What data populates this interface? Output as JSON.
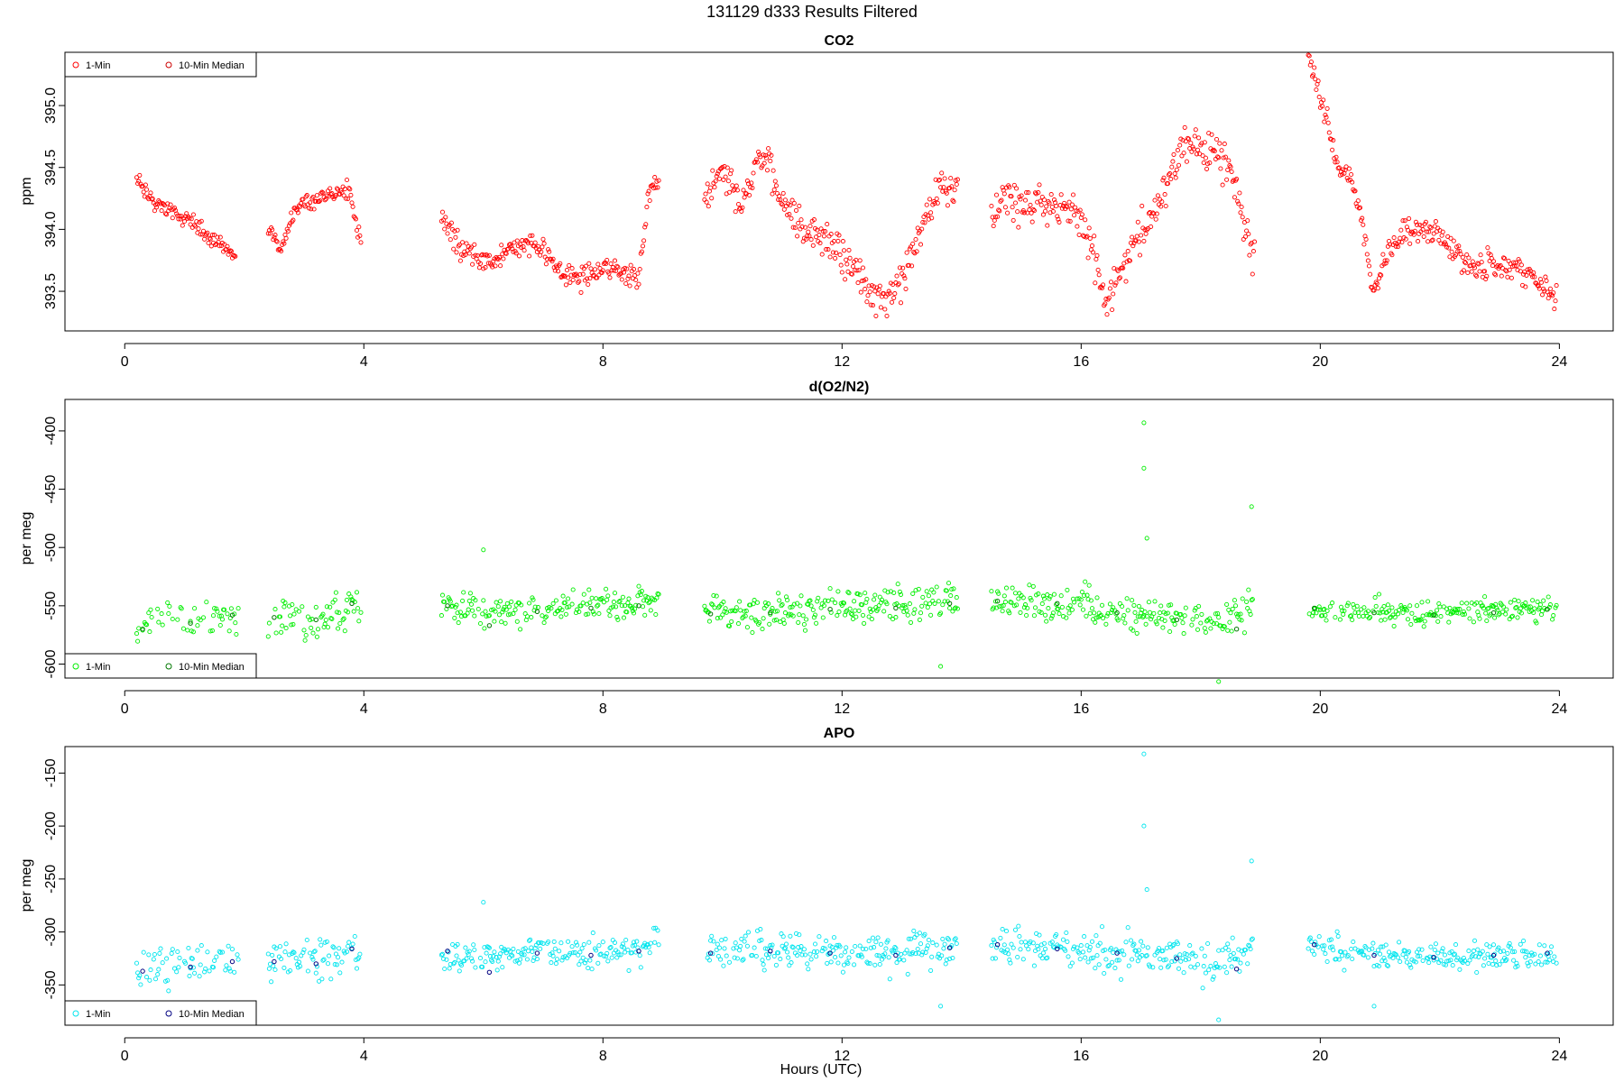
{
  "figure": {
    "title": "131129   d333   Results Filtered",
    "xlabel": "Hours (UTC)"
  },
  "legend_labels": [
    "1-Min",
    "10-Min Median"
  ],
  "chart_data": [
    {
      "type": "scatter",
      "title": "CO2",
      "ylabel": "ppm",
      "xlim": [
        -1,
        24.9
      ],
      "ylim": [
        393.18,
        395.43
      ],
      "xticks": [
        0,
        4,
        8,
        12,
        16,
        20,
        24
      ],
      "yticks": [
        393.5,
        394.0,
        394.5,
        395.0
      ],
      "ytick_labels": [
        "393.5",
        "394.0",
        "394.5",
        "395.0"
      ],
      "legend_position": "top-left",
      "colors": {
        "one_min": "#ff0000",
        "median": "#cc0000"
      },
      "series": [
        {
          "name": "1-Min",
          "segments": [
            {
              "points": [
                [
                  0.2,
                  394.4
                ],
                [
                  0.5,
                  394.22
                ],
                [
                  1.0,
                  394.1
                ],
                [
                  1.4,
                  393.95
                ],
                [
                  1.85,
                  393.78
                ]
              ],
              "noise": 0.05,
              "density": 1.0
            },
            {
              "points": [
                [
                  2.4,
                  394.0
                ],
                [
                  2.6,
                  393.85
                ],
                [
                  2.9,
                  394.2
                ],
                [
                  3.3,
                  394.25
                ],
                [
                  3.6,
                  394.3
                ],
                [
                  3.75,
                  394.3
                ],
                [
                  3.95,
                  393.92
                ]
              ],
              "noise": 0.05,
              "density": 1.0
            },
            {
              "points": [
                [
                  5.3,
                  394.1
                ],
                [
                  5.6,
                  393.85
                ],
                [
                  6.0,
                  393.75
                ],
                [
                  6.4,
                  393.8
                ],
                [
                  6.7,
                  393.9
                ],
                [
                  7.0,
                  393.85
                ],
                [
                  7.3,
                  393.65
                ],
                [
                  7.6,
                  393.6
                ],
                [
                  8.0,
                  393.7
                ],
                [
                  8.3,
                  393.65
                ],
                [
                  8.6,
                  393.62
                ],
                [
                  8.75,
                  394.2
                ],
                [
                  8.95,
                  394.45
                ]
              ],
              "noise": 0.07,
              "density": 1.0
            },
            {
              "points": [
                [
                  9.7,
                  394.2
                ],
                [
                  10.0,
                  394.5
                ],
                [
                  10.3,
                  394.2
                ],
                [
                  10.6,
                  394.6
                ],
                [
                  10.8,
                  394.5
                ],
                [
                  11.0,
                  394.2
                ],
                [
                  11.5,
                  394.0
                ],
                [
                  12.0,
                  393.8
                ],
                [
                  12.4,
                  393.55
                ],
                [
                  12.7,
                  393.4
                ],
                [
                  13.0,
                  393.55
                ],
                [
                  13.3,
                  393.95
                ],
                [
                  13.6,
                  394.3
                ],
                [
                  13.95,
                  394.3
                ]
              ],
              "noise": 0.12,
              "density": 1.0
            },
            {
              "points": [
                [
                  14.5,
                  394.1
                ],
                [
                  14.7,
                  394.3
                ],
                [
                  15.0,
                  394.2
                ],
                [
                  15.5,
                  394.2
                ],
                [
                  15.9,
                  394.15
                ],
                [
                  16.2,
                  393.85
                ],
                [
                  16.4,
                  393.4
                ],
                [
                  16.8,
                  393.8
                ],
                [
                  17.2,
                  394.1
                ],
                [
                  17.5,
                  394.5
                ],
                [
                  17.8,
                  394.7
                ],
                [
                  18.2,
                  394.6
                ],
                [
                  18.5,
                  394.5
                ],
                [
                  18.9,
                  393.7
                ]
              ],
              "noise": 0.12,
              "density": 1.0
            },
            {
              "points": [
                [
                  19.8,
                  395.35
                ],
                [
                  20.0,
                  395.1
                ],
                [
                  20.3,
                  394.5
                ],
                [
                  20.6,
                  394.3
                ],
                [
                  20.9,
                  393.5
                ],
                [
                  21.1,
                  393.8
                ],
                [
                  21.5,
                  394.0
                ],
                [
                  22.0,
                  393.95
                ],
                [
                  22.5,
                  393.7
                ],
                [
                  23.0,
                  393.7
                ],
                [
                  23.5,
                  393.65
                ],
                [
                  23.95,
                  393.45
                ]
              ],
              "noise": 0.08,
              "density": 1.0
            }
          ]
        },
        {
          "name": "10-Min Median",
          "segments": []
        }
      ]
    },
    {
      "type": "scatter",
      "title": "d(O2/N2)",
      "ylabel": "per meg",
      "xlim": [
        -1,
        24.9
      ],
      "ylim": [
        -612,
        -373
      ],
      "xticks": [
        0,
        4,
        8,
        12,
        16,
        20,
        24
      ],
      "yticks": [
        -400,
        -450,
        -500,
        -550,
        -600
      ],
      "ytick_labels": [
        "-400",
        "-450",
        "-500",
        "-550",
        "-600"
      ],
      "legend_position": "bottom-left",
      "colors": {
        "one_min": "#00ee00",
        "median": "#007700"
      },
      "series": [
        {
          "name": "1-Min",
          "segments": [
            {
              "points": [
                [
                  0.2,
                  -570
                ],
                [
                  1.0,
                  -562
                ],
                [
                  1.9,
                  -560
                ]
              ],
              "noise": 12,
              "density": 0.5
            },
            {
              "points": [
                [
                  2.4,
                  -560
                ],
                [
                  3.0,
                  -565
                ],
                [
                  3.6,
                  -555
                ],
                [
                  3.95,
                  -548
                ]
              ],
              "noise": 14,
              "density": 0.7
            },
            {
              "points": [
                [
                  5.3,
                  -550
                ],
                [
                  6.0,
                  -555
                ],
                [
                  7.0,
                  -552
                ],
                [
                  8.0,
                  -550
                ],
                [
                  8.95,
                  -548
                ]
              ],
              "noise": 10,
              "density": 0.8
            },
            {
              "points": [
                [
                  9.7,
                  -555
                ],
                [
                  11.0,
                  -555
                ],
                [
                  12.0,
                  -552
                ],
                [
                  13.0,
                  -550
                ],
                [
                  13.95,
                  -545
                ]
              ],
              "noise": 12,
              "density": 0.8
            },
            {
              "points": [
                [
                  14.5,
                  -545
                ],
                [
                  15.5,
                  -548
                ],
                [
                  16.5,
                  -555
                ],
                [
                  17.5,
                  -560
                ],
                [
                  18.3,
                  -565
                ],
                [
                  18.9,
                  -550
                ]
              ],
              "noise": 12,
              "density": 0.8
            },
            {
              "points": [
                [
                  19.8,
                  -552
                ],
                [
                  21.0,
                  -555
                ],
                [
                  22.0,
                  -557
                ],
                [
                  23.0,
                  -553
                ],
                [
                  23.95,
                  -552
                ]
              ],
              "noise": 8,
              "density": 0.8
            }
          ],
          "outliers": [
            [
              17.05,
              -393
            ],
            [
              17.05,
              -432
            ],
            [
              17.1,
              -492
            ],
            [
              18.85,
              -465
            ],
            [
              13.65,
              -602
            ],
            [
              18.3,
              -615
            ],
            [
              6.0,
              -502
            ]
          ]
        },
        {
          "name": "10-Min Median",
          "points": [
            [
              0.3,
              -570
            ],
            [
              1.1,
              -565
            ],
            [
              1.8,
              -558
            ],
            [
              2.5,
              -560
            ],
            [
              3.2,
              -562
            ],
            [
              3.8,
              -548
            ],
            [
              5.4,
              -550
            ],
            [
              6.1,
              -567
            ],
            [
              6.9,
              -555
            ],
            [
              7.8,
              -552
            ],
            [
              8.6,
              -550
            ],
            [
              9.8,
              -557
            ],
            [
              10.8,
              -556
            ],
            [
              11.8,
              -553
            ],
            [
              12.9,
              -552
            ],
            [
              13.8,
              -548
            ],
            [
              14.6,
              -546
            ],
            [
              15.6,
              -548
            ],
            [
              16.6,
              -556
            ],
            [
              17.6,
              -562
            ],
            [
              18.6,
              -570
            ],
            [
              19.9,
              -552
            ],
            [
              20.9,
              -556
            ],
            [
              21.9,
              -558
            ],
            [
              22.9,
              -556
            ],
            [
              23.8,
              -553
            ]
          ]
        }
      ]
    },
    {
      "type": "scatter",
      "title": "APO",
      "ylabel": "per meg",
      "xlim": [
        -1,
        24.9
      ],
      "ylim": [
        -388,
        -125
      ],
      "xticks": [
        0,
        4,
        8,
        12,
        16,
        20,
        24
      ],
      "yticks": [
        -150,
        -200,
        -250,
        -300,
        -350
      ],
      "ytick_labels": [
        "-150",
        "-200",
        "-250",
        "-300",
        "-350"
      ],
      "legend_position": "bottom-left",
      "colors": {
        "one_min": "#00e5ee",
        "median": "#000080"
      },
      "series": [
        {
          "name": "1-Min",
          "segments": [
            {
              "points": [
                [
                  0.2,
                  -337
                ],
                [
                  1.0,
                  -330
                ],
                [
                  1.9,
                  -325
                ]
              ],
              "noise": 14,
              "density": 0.5
            },
            {
              "points": [
                [
                  2.4,
                  -330
                ],
                [
                  3.0,
                  -325
                ],
                [
                  3.6,
                  -320
                ],
                [
                  3.95,
                  -315
                ]
              ],
              "noise": 15,
              "density": 0.7
            },
            {
              "points": [
                [
                  5.3,
                  -320
                ],
                [
                  6.0,
                  -325
                ],
                [
                  7.0,
                  -318
                ],
                [
                  8.0,
                  -320
                ],
                [
                  8.95,
                  -312
                ]
              ],
              "noise": 12,
              "density": 0.8
            },
            {
              "points": [
                [
                  9.7,
                  -315
                ],
                [
                  11.0,
                  -318
                ],
                [
                  12.0,
                  -320
                ],
                [
                  13.0,
                  -318
                ],
                [
                  13.95,
                  -312
                ]
              ],
              "noise": 14,
              "density": 0.8
            },
            {
              "points": [
                [
                  14.5,
                  -312
                ],
                [
                  15.5,
                  -315
                ],
                [
                  16.5,
                  -320
                ],
                [
                  17.5,
                  -325
                ],
                [
                  18.3,
                  -330
                ],
                [
                  18.9,
                  -312
                ]
              ],
              "noise": 14,
              "density": 0.8
            },
            {
              "points": [
                [
                  19.8,
                  -312
                ],
                [
                  21.0,
                  -322
                ],
                [
                  22.0,
                  -324
                ],
                [
                  23.0,
                  -322
                ],
                [
                  23.95,
                  -325
                ]
              ],
              "noise": 10,
              "density": 0.8
            }
          ],
          "outliers": [
            [
              17.05,
              -132
            ],
            [
              17.05,
              -200
            ],
            [
              17.1,
              -260
            ],
            [
              18.85,
              -233
            ],
            [
              13.65,
              -370
            ],
            [
              18.3,
              -383
            ],
            [
              6.0,
              -272
            ],
            [
              20.9,
              -370
            ]
          ]
        },
        {
          "name": "10-Min Median",
          "points": [
            [
              0.3,
              -337
            ],
            [
              1.1,
              -333
            ],
            [
              1.8,
              -328
            ],
            [
              2.5,
              -328
            ],
            [
              3.2,
              -330
            ],
            [
              3.8,
              -316
            ],
            [
              5.4,
              -318
            ],
            [
              6.1,
              -338
            ],
            [
              6.9,
              -320
            ],
            [
              7.8,
              -322
            ],
            [
              8.6,
              -318
            ],
            [
              9.8,
              -320
            ],
            [
              10.8,
              -318
            ],
            [
              11.8,
              -320
            ],
            [
              12.9,
              -322
            ],
            [
              13.8,
              -315
            ],
            [
              14.6,
              -312
            ],
            [
              15.6,
              -316
            ],
            [
              16.6,
              -320
            ],
            [
              17.6,
              -325
            ],
            [
              18.6,
              -335
            ],
            [
              19.9,
              -312
            ],
            [
              20.9,
              -322
            ],
            [
              21.9,
              -324
            ],
            [
              22.9,
              -322
            ],
            [
              23.8,
              -320
            ]
          ]
        }
      ]
    }
  ]
}
